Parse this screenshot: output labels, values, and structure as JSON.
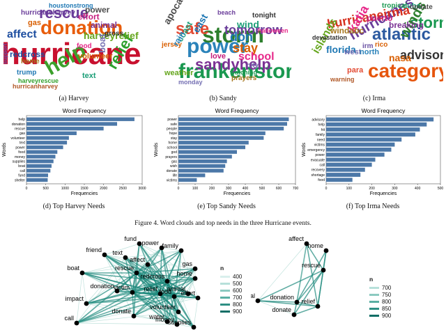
{
  "wordclouds": [
    {
      "caption": "(a)  Harvey",
      "words": [
        {
          "t": "hurricane",
          "c": "#c8102e"
        },
        {
          "t": "donation",
          "c": "#e85d0c"
        },
        {
          "t": "help",
          "c": "#3ca02c"
        },
        {
          "t": "rescue",
          "c": "#6a3d9a"
        },
        {
          "t": "relief",
          "c": "#2ca02c"
        },
        {
          "t": "affect",
          "c": "#1f4fa0"
        },
        {
          "t": "harveyrelief",
          "c": "#66a61e"
        },
        {
          "t": "redcross",
          "c": "#1f4fa0"
        },
        {
          "t": "volunteer",
          "c": "#d55e00"
        },
        {
          "t": "effort",
          "c": "#c51b7d"
        },
        {
          "t": "power",
          "c": "#4d4d4d"
        },
        {
          "t": "animal",
          "c": "#7b3294"
        },
        {
          "t": "text",
          "c": "#1b9e77"
        },
        {
          "t": "gas",
          "c": "#d95f02"
        },
        {
          "t": "boat",
          "c": "#7570b3"
        },
        {
          "t": "hurricaneharvey",
          "c": "#6a3d9a"
        },
        {
          "t": "trump",
          "c": "#1f78b4"
        },
        {
          "t": "food",
          "c": "#e7298a"
        },
        {
          "t": "gross",
          "c": "#333333"
        },
        {
          "t": "home",
          "c": "#a6761d"
        },
        {
          "t": "houstonstrong",
          "c": "#1f78b4"
        },
        {
          "t": "harveyrescue",
          "c": "#33a02c"
        },
        {
          "t": "hurricanharvey",
          "c": "#b15928"
        },
        {
          "t": "support",
          "c": "#6a51a3"
        }
      ]
    },
    {
      "caption": "(b)  Sandy",
      "words": [
        {
          "t": "power",
          "c": "#2b83ba"
        },
        {
          "t": "frankenstorm",
          "c": "#1a9850"
        },
        {
          "t": "storm",
          "c": "#2d7f2d"
        },
        {
          "t": "safe",
          "c": "#e34a33"
        },
        {
          "t": "sandyhelp",
          "c": "#7b3294"
        },
        {
          "t": "tomorrow",
          "c": "#6a3d9a"
        },
        {
          "t": "stay",
          "c": "#d95f02"
        },
        {
          "t": "don",
          "c": "#1f78b4"
        },
        {
          "t": "school",
          "c": "#e7298a"
        },
        {
          "t": "apocalypse",
          "c": "#4d4d4d"
        },
        {
          "t": "wind",
          "c": "#1b9e77"
        },
        {
          "t": "east",
          "c": "#1f78b4"
        },
        {
          "t": "weather",
          "c": "#66a61e"
        },
        {
          "t": "love",
          "c": "#c51b7d"
        },
        {
          "t": "city",
          "c": "#7570b3"
        },
        {
          "t": "prayers",
          "c": "#a6761d"
        },
        {
          "t": "tonight",
          "c": "#333333"
        },
        {
          "t": "jersey",
          "c": "#d95f02"
        },
        {
          "t": "coast",
          "c": "#1b9e77"
        },
        {
          "t": "rain",
          "c": "#2b83ba"
        },
        {
          "t": "beach",
          "c": "#6a3d9a"
        },
        {
          "t": "halloween",
          "c": "#e7298a"
        },
        {
          "t": "watching",
          "c": "#1a9850"
        },
        {
          "t": "monday",
          "c": "#7570b3"
        }
      ]
    },
    {
      "caption": "(c)  Irma",
      "words": [
        {
          "t": "atlantic",
          "c": "#2c5aa0"
        },
        {
          "t": "category",
          "c": "#e6550d"
        },
        {
          "t": "storm",
          "c": "#1a9850"
        },
        {
          "t": "hurricanes",
          "c": "#6a3d9a"
        },
        {
          "t": "hurricaneirma",
          "c": "#d7301f"
        },
        {
          "t": "winds",
          "c": "#2d7f2d"
        },
        {
          "t": "katia",
          "c": "#e7298a"
        },
        {
          "t": "advisory",
          "c": "#333333"
        },
        {
          "t": "florida",
          "c": "#1f78b4"
        },
        {
          "t": "islands",
          "c": "#66a61e"
        },
        {
          "t": "breaking",
          "c": "#7b3294"
        },
        {
          "t": "nasa",
          "c": "#d95f02"
        },
        {
          "t": "cuba",
          "c": "#1b9e77"
        },
        {
          "t": "puerto",
          "c": "#c51b7d"
        },
        {
          "t": "west",
          "c": "#7570b3"
        },
        {
          "t": "windabc",
          "c": "#a6761d"
        },
        {
          "t": "north",
          "c": "#2b83ba"
        },
        {
          "t": "para",
          "c": "#e34a33"
        },
        {
          "t": "update",
          "c": "#4d4d4d"
        },
        {
          "t": "tropical",
          "c": "#1a9850"
        },
        {
          "t": "irm",
          "c": "#6a51a3"
        },
        {
          "t": "rico",
          "c": "#d95f02"
        },
        {
          "t": "devastation",
          "c": "#333333"
        },
        {
          "t": "warning",
          "c": "#b15928"
        }
      ]
    }
  ],
  "chart_data": [
    {
      "type": "bar",
      "title": "Word Frequency",
      "xlabel": "Frequencies",
      "ylabel": "Words",
      "caption": "(d)  Top Harvey Needs",
      "xlim": [
        0,
        3000
      ],
      "xticks": [
        0,
        500,
        1000,
        1500,
        2000,
        2500,
        3000
      ],
      "categories": [
        "help",
        "donation",
        "rescue",
        "gas",
        "volunteer",
        "text",
        "power",
        "food",
        "money",
        "supplies",
        "boat",
        "call",
        "fund",
        "shelter"
      ],
      "values": [
        2800,
        2350,
        2000,
        1300,
        1100,
        1050,
        950,
        800,
        750,
        700,
        650,
        620,
        560,
        550
      ],
      "color": "#4c78a8"
    },
    {
      "type": "bar",
      "title": "Word Frequency",
      "xlabel": "Frequencies",
      "ylabel": "Words",
      "caption": "(e)  Top Sandy Needs",
      "xlim": [
        0,
        700
      ],
      "xticks": [
        0,
        100,
        200,
        300,
        400,
        500,
        600,
        700
      ],
      "categories": [
        "power",
        "safe",
        "people",
        "hope",
        "stay",
        "home",
        "school",
        "god",
        "prayers",
        "gas",
        "wish",
        "donate",
        "life",
        "victims"
      ],
      "values": [
        660,
        650,
        630,
        520,
        510,
        420,
        400,
        350,
        320,
        290,
        280,
        270,
        160,
        110
      ],
      "color": "#4c78a8"
    },
    {
      "type": "bar",
      "title": "Word Frequency",
      "xlabel": "Frequencies",
      "ylabel": "Words",
      "caption": "(f)  Top Irma Needs",
      "xlim": [
        0,
        500
      ],
      "xticks": [
        0,
        100,
        200,
        300,
        400,
        500
      ],
      "categories": [
        "advisory",
        "help",
        "hit",
        "family",
        "need",
        "victims",
        "emergency",
        "power",
        "evacuate",
        "call",
        "recovery",
        "shortage",
        "food"
      ],
      "values": [
        470,
        440,
        410,
        390,
        330,
        300,
        285,
        255,
        215,
        200,
        170,
        150,
        115
      ],
      "color": "#4c78a8"
    }
  ],
  "figure_caption": "Figure 4.   Word clouds and top needs in the three Hurricane events.",
  "network_left": {
    "nodes": [
      {
        "t": "fund"
      },
      {
        "t": "power"
      },
      {
        "t": "family"
      },
      {
        "t": "friend"
      },
      {
        "t": "text"
      },
      {
        "t": "affect"
      },
      {
        "t": "gas"
      },
      {
        "t": "boat"
      },
      {
        "t": "rescue"
      },
      {
        "t": "home"
      },
      {
        "t": "redcross"
      },
      {
        "t": "donation"
      },
      {
        "t": "animal"
      },
      {
        "t": "victim"
      },
      {
        "t": "relief"
      },
      {
        "t": "food"
      },
      {
        "t": "effort"
      },
      {
        "t": "impact"
      },
      {
        "t": "donate"
      },
      {
        "t": "volunteer"
      },
      {
        "t": "call"
      },
      {
        "t": "water"
      },
      {
        "t": "money"
      },
      {
        "t": "supplies"
      }
    ],
    "legend_title": "n",
    "legend": [
      {
        "v": "400",
        "c": "#d9efec"
      },
      {
        "v": "500",
        "c": "#b7e0da"
      },
      {
        "v": "600",
        "c": "#8ccac0"
      },
      {
        "v": "700",
        "c": "#5bafa3"
      },
      {
        "v": "800",
        "c": "#2e8f84"
      },
      {
        "v": "900",
        "c": "#0f6e66"
      }
    ]
  },
  "network_right": {
    "nodes": [
      {
        "t": "affect"
      },
      {
        "t": "home"
      },
      {
        "t": "rescue"
      },
      {
        "t": "animal"
      },
      {
        "t": "donation"
      },
      {
        "t": "relief"
      },
      {
        "t": "donate"
      }
    ],
    "legend_title": "n",
    "legend": [
      {
        "v": "700",
        "c": "#b7e0da"
      },
      {
        "v": "750",
        "c": "#8ccac0"
      },
      {
        "v": "800",
        "c": "#5bafa3"
      },
      {
        "v": "850",
        "c": "#2e8f84"
      },
      {
        "v": "900",
        "c": "#0f6e66"
      }
    ]
  }
}
